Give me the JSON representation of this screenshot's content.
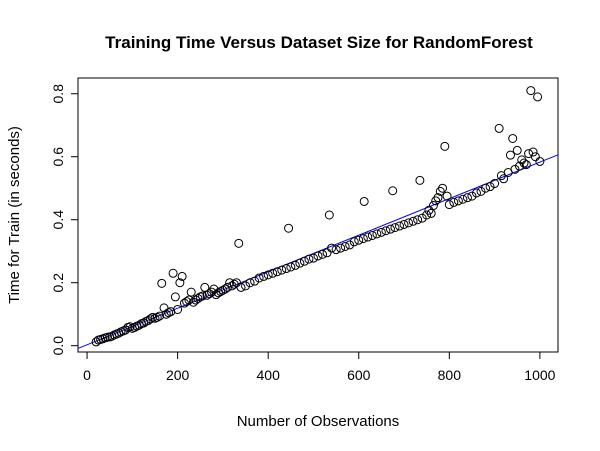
{
  "chart_data": {
    "type": "scatter",
    "title": "Training Time Versus Dataset Size for RandomForest",
    "xlabel": "Number of Observations",
    "ylabel": "Time for Train (in seconds)",
    "xlim": [
      -20,
      1040
    ],
    "ylim": [
      -0.02,
      0.85
    ],
    "xticks": [
      0,
      200,
      400,
      600,
      800,
      1000
    ],
    "yticks": [
      0.0,
      0.2,
      0.4,
      0.6,
      0.8
    ],
    "xtick_labels": [
      "0",
      "200",
      "400",
      "600",
      "800",
      "1000"
    ],
    "ytick_labels": [
      "0.0",
      "0.2",
      "0.4",
      "0.6",
      "0.8"
    ],
    "grid": false,
    "point_style": "open-circle",
    "fit_line": {
      "intercept": 0.003,
      "slope": 0.00058,
      "color": "#0000ff"
    },
    "series": [
      {
        "points": [
          [
            20,
            0.012
          ],
          [
            25,
            0.018
          ],
          [
            30,
            0.02
          ],
          [
            35,
            0.022
          ],
          [
            40,
            0.025
          ],
          [
            45,
            0.027
          ],
          [
            50,
            0.028
          ],
          [
            55,
            0.03
          ],
          [
            60,
            0.034
          ],
          [
            65,
            0.037
          ],
          [
            70,
            0.04
          ],
          [
            75,
            0.044
          ],
          [
            80,
            0.047
          ],
          [
            85,
            0.05
          ],
          [
            90,
            0.058
          ],
          [
            95,
            0.06
          ],
          [
            100,
            0.055
          ],
          [
            105,
            0.058
          ],
          [
            110,
            0.062
          ],
          [
            115,
            0.065
          ],
          [
            120,
            0.07
          ],
          [
            125,
            0.072
          ],
          [
            130,
            0.077
          ],
          [
            135,
            0.08
          ],
          [
            140,
            0.085
          ],
          [
            145,
            0.09
          ],
          [
            150,
            0.087
          ],
          [
            155,
            0.09
          ],
          [
            160,
            0.094
          ],
          [
            165,
            0.198
          ],
          [
            170,
            0.12
          ],
          [
            175,
            0.1
          ],
          [
            180,
            0.105
          ],
          [
            185,
            0.108
          ],
          [
            190,
            0.23
          ],
          [
            195,
            0.155
          ],
          [
            200,
            0.115
          ],
          [
            205,
            0.2
          ],
          [
            210,
            0.22
          ],
          [
            215,
            0.135
          ],
          [
            220,
            0.14
          ],
          [
            225,
            0.145
          ],
          [
            230,
            0.17
          ],
          [
            235,
            0.138
          ],
          [
            240,
            0.145
          ],
          [
            245,
            0.15
          ],
          [
            250,
            0.155
          ],
          [
            255,
            0.158
          ],
          [
            260,
            0.185
          ],
          [
            265,
            0.16
          ],
          [
            270,
            0.165
          ],
          [
            275,
            0.17
          ],
          [
            280,
            0.18
          ],
          [
            285,
            0.162
          ],
          [
            290,
            0.168
          ],
          [
            295,
            0.172
          ],
          [
            300,
            0.176
          ],
          [
            305,
            0.18
          ],
          [
            310,
            0.185
          ],
          [
            315,
            0.2
          ],
          [
            320,
            0.19
          ],
          [
            325,
            0.195
          ],
          [
            330,
            0.2
          ],
          [
            335,
            0.325
          ],
          [
            340,
            0.185
          ],
          [
            350,
            0.19
          ],
          [
            360,
            0.2
          ],
          [
            370,
            0.205
          ],
          [
            380,
            0.215
          ],
          [
            390,
            0.22
          ],
          [
            400,
            0.225
          ],
          [
            410,
            0.23
          ],
          [
            420,
            0.235
          ],
          [
            430,
            0.24
          ],
          [
            440,
            0.245
          ],
          [
            445,
            0.373
          ],
          [
            450,
            0.25
          ],
          [
            460,
            0.255
          ],
          [
            470,
            0.262
          ],
          [
            480,
            0.268
          ],
          [
            490,
            0.275
          ],
          [
            500,
            0.278
          ],
          [
            510,
            0.285
          ],
          [
            520,
            0.29
          ],
          [
            530,
            0.295
          ],
          [
            535,
            0.415
          ],
          [
            540,
            0.31
          ],
          [
            550,
            0.305
          ],
          [
            560,
            0.31
          ],
          [
            570,
            0.315
          ],
          [
            580,
            0.32
          ],
          [
            590,
            0.33
          ],
          [
            600,
            0.335
          ],
          [
            610,
            0.34
          ],
          [
            612,
            0.458
          ],
          [
            620,
            0.345
          ],
          [
            630,
            0.35
          ],
          [
            640,
            0.355
          ],
          [
            650,
            0.36
          ],
          [
            660,
            0.365
          ],
          [
            670,
            0.37
          ],
          [
            675,
            0.492
          ],
          [
            680,
            0.375
          ],
          [
            690,
            0.38
          ],
          [
            700,
            0.385
          ],
          [
            710,
            0.39
          ],
          [
            720,
            0.395
          ],
          [
            730,
            0.4
          ],
          [
            735,
            0.525
          ],
          [
            740,
            0.405
          ],
          [
            750,
            0.415
          ],
          [
            755,
            0.43
          ],
          [
            760,
            0.42
          ],
          [
            765,
            0.445
          ],
          [
            770,
            0.46
          ],
          [
            775,
            0.47
          ],
          [
            780,
            0.49
          ],
          [
            785,
            0.5
          ],
          [
            790,
            0.633
          ],
          [
            795,
            0.475
          ],
          [
            800,
            0.448
          ],
          [
            810,
            0.455
          ],
          [
            820,
            0.46
          ],
          [
            830,
            0.465
          ],
          [
            840,
            0.47
          ],
          [
            850,
            0.475
          ],
          [
            860,
            0.485
          ],
          [
            870,
            0.49
          ],
          [
            880,
            0.5
          ],
          [
            890,
            0.505
          ],
          [
            900,
            0.515
          ],
          [
            910,
            0.69
          ],
          [
            915,
            0.54
          ],
          [
            920,
            0.53
          ],
          [
            930,
            0.55
          ],
          [
            935,
            0.605
          ],
          [
            940,
            0.658
          ],
          [
            945,
            0.56
          ],
          [
            950,
            0.62
          ],
          [
            955,
            0.57
          ],
          [
            960,
            0.59
          ],
          [
            965,
            0.58
          ],
          [
            970,
            0.575
          ],
          [
            975,
            0.61
          ],
          [
            980,
            0.81
          ],
          [
            985,
            0.615
          ],
          [
            990,
            0.6
          ],
          [
            995,
            0.79
          ],
          [
            1000,
            0.585
          ]
        ]
      }
    ]
  }
}
